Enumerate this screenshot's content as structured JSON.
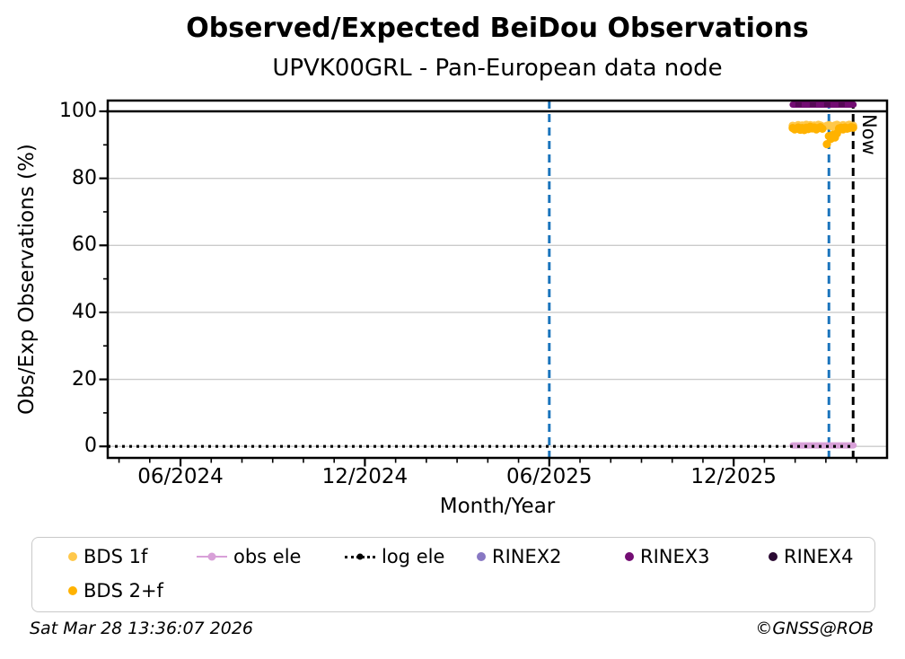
{
  "header": {
    "title": "Observed/Expected BeiDou Observations",
    "subtitle": "UPVK00GRL - Pan-European data node"
  },
  "axes": {
    "x_label": "Month/Year",
    "y_label": "Obs/Exp Observations (%)"
  },
  "now_label": "Now",
  "footer": {
    "timestamp": "Sat Mar 28 13:36:07 2026",
    "credit": "©GNSS@ROB"
  },
  "colors": {
    "bds_1f": "#FFC84B",
    "bds_2f": "#FFB200",
    "obs_ele": "#D8A0D8",
    "log_ele": "#000000",
    "rinex2": "#8878C3",
    "rinex3": "#730D73",
    "rinex3_dash": "#560956",
    "rinex4": "#2B0A33",
    "event_line_blue": "#1B74BC",
    "now_line_black": "#000000",
    "grid_gray": "#CBCBCB",
    "frame_black": "#000000"
  },
  "legend": {
    "items": [
      {
        "label": "BDS 1f",
        "marker": "dot",
        "color": "#FFC84B"
      },
      {
        "label": "obs ele",
        "marker": "line-dot",
        "color": "#D8A0D8"
      },
      {
        "label": "log ele",
        "marker": "dotted-dot",
        "color": "#000000"
      },
      {
        "label": "RINEX2",
        "marker": "dot",
        "color": "#8878C3"
      },
      {
        "label": "RINEX3",
        "marker": "dot",
        "color": "#730D73"
      },
      {
        "label": "RINEX4",
        "marker": "dot",
        "color": "#2B0A33"
      },
      {
        "label": "BDS 2+f",
        "marker": "dot",
        "color": "#FFB200"
      }
    ]
  },
  "chart_data": {
    "type": "scatter",
    "title": "Observed/Expected BeiDou Observations",
    "subtitle": "UPVK00GRL - Pan-European data node",
    "xlabel": "Month/Year",
    "ylabel": "Obs/Exp Observations (%)",
    "ylim": [
      -3.5,
      103.2
    ],
    "xlim": [
      "2024-03-19",
      "2026-05-01"
    ],
    "y_ticks": [
      0,
      20,
      40,
      60,
      80,
      100
    ],
    "y_minor_ticks": [
      10,
      30,
      50,
      70,
      90
    ],
    "x_tick_labels": [
      "06/2024",
      "12/2024",
      "06/2025",
      "12/2025"
    ],
    "x_tick_months": [
      "2024-06",
      "2024-12",
      "2025-06",
      "2025-12"
    ],
    "x_minor_tick_interval": "1 month",
    "grid": "horizontal gray lines at 0/20/40/60/80, solid black reference line at 100",
    "legend_position": "below plot, 2 rows",
    "reference_line_y": 100,
    "vertical_lines": [
      {
        "x": "2025-06-01",
        "style": "dashed",
        "color": "#1B74BC"
      },
      {
        "x": "2026-03-04",
        "style": "dashed",
        "color": "#1B74BC"
      },
      {
        "x": "2026-03-28",
        "style": "dashed",
        "color": "#000000",
        "label": "Now"
      }
    ],
    "series": [
      {
        "name": "BDS 1f",
        "type": "scatter",
        "color": "#FFC84B",
        "dates": [
          "2026-01-29",
          "2026-01-31",
          "2026-02-02",
          "2026-02-04",
          "2026-02-06",
          "2026-02-08",
          "2026-02-10",
          "2026-02-12",
          "2026-02-14",
          "2026-02-16",
          "2026-02-18",
          "2026-02-20",
          "2026-02-22",
          "2026-02-24",
          "2026-02-26",
          "2026-02-28",
          "2026-03-02",
          "2026-03-04",
          "2026-03-06",
          "2026-03-08",
          "2026-03-10",
          "2026-03-12",
          "2026-03-14",
          "2026-03-16",
          "2026-03-18",
          "2026-03-20",
          "2026-03-22",
          "2026-03-24",
          "2026-03-26",
          "2026-03-28"
        ],
        "values": [
          95.7,
          95.5,
          95.6,
          95.9,
          95.4,
          95.8,
          95.5,
          96.0,
          95.7,
          95.9,
          95.5,
          95.8,
          95.6,
          96.0,
          95.8,
          95.5,
          95.7,
          95.9,
          95.6,
          95.4,
          95.8,
          96.0,
          95.7,
          95.5,
          95.9,
          95.6,
          95.8,
          96.0,
          95.5,
          95.7
        ]
      },
      {
        "name": "BDS 2+f",
        "type": "scatter",
        "color": "#FFB200",
        "dates": [
          "2026-01-29",
          "2026-01-31",
          "2026-02-02",
          "2026-02-04",
          "2026-02-06",
          "2026-02-08",
          "2026-02-10",
          "2026-02-12",
          "2026-02-14",
          "2026-02-16",
          "2026-02-18",
          "2026-02-20",
          "2026-02-22",
          "2026-02-24",
          "2026-02-26",
          "2026-02-28",
          "2026-03-02",
          "2026-03-04",
          "2026-03-06",
          "2026-03-08",
          "2026-03-10",
          "2026-03-12",
          "2026-03-14",
          "2026-03-16",
          "2026-03-18",
          "2026-03-20",
          "2026-03-22",
          "2026-03-24",
          "2026-03-26",
          "2026-03-28"
        ],
        "values": [
          95.0,
          94.6,
          94.8,
          95.2,
          94.5,
          95.0,
          94.4,
          95.1,
          94.7,
          95.4,
          94.9,
          95.2,
          94.6,
          95.0,
          95.3,
          94.8,
          90.2,
          92.6,
          91.8,
          93.0,
          92.2,
          93.4,
          94.9,
          95.1,
          94.6,
          95.2,
          94.8,
          95.0,
          95.3,
          95.1
        ]
      },
      {
        "name": "obs ele",
        "type": "line",
        "color": "#D8A0D8",
        "width": 7,
        "start": "2026-01-29",
        "end": "2026-03-28",
        "value": 0.3
      },
      {
        "name": "log ele",
        "type": "dotted",
        "color": "#000000",
        "width": 3.2,
        "start": "2024-03-19",
        "end": "2026-03-28",
        "value": 0
      },
      {
        "name": "RINEX2",
        "type": "scatter",
        "color": "#8878C3",
        "dates": [],
        "values": []
      },
      {
        "name": "RINEX3",
        "type": "line",
        "color": "#730D73",
        "width": 7,
        "dash_overlay": "#560956",
        "start": "2026-01-29",
        "end": "2026-03-28",
        "value": 102
      },
      {
        "name": "RINEX4",
        "type": "scatter",
        "color": "#2B0A33",
        "dates": [],
        "values": []
      }
    ]
  }
}
